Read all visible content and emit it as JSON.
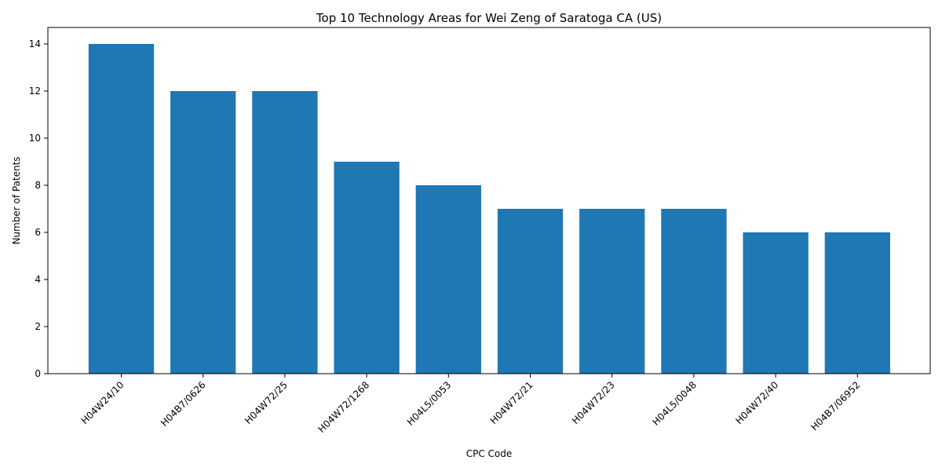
{
  "chart_data": {
    "type": "bar",
    "title": "Top 10 Technology Areas for Wei Zeng of Saratoga CA (US)",
    "xlabel": "CPC Code",
    "ylabel": "Number of Patents",
    "categories": [
      "H04W24/10",
      "H04B7/0626",
      "H04W72/25",
      "H04W72/1268",
      "H04L5/0053",
      "H04W72/21",
      "H04W72/23",
      "H04L5/0048",
      "H04W72/40",
      "H04B7/06952"
    ],
    "values": [
      14,
      12,
      12,
      9,
      8,
      7,
      7,
      7,
      6,
      6
    ],
    "ylim": [
      0,
      14.7
    ],
    "yticks": [
      0,
      2,
      4,
      6,
      8,
      10,
      12,
      14
    ],
    "grid": false,
    "bar_color": "#1f77b4"
  }
}
